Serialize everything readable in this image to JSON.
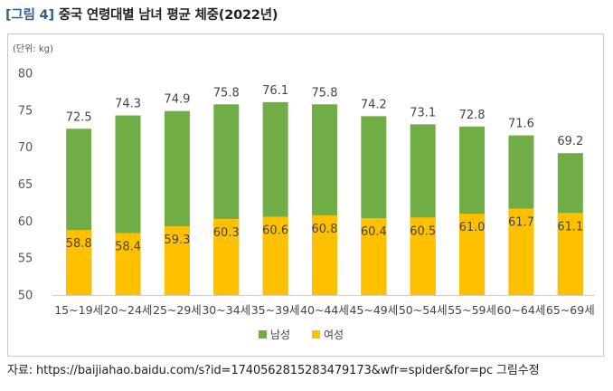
{
  "figure": {
    "label": "[그림 4]",
    "title": "중국 연령대별 남녀 평균 체중(2022년)"
  },
  "colors": {
    "male": "#70ad47",
    "female": "#ffc000",
    "title_label": "#2f5f8f"
  },
  "chart_data": {
    "type": "bar",
    "title": "",
    "unit_label": "(단위: kg)",
    "categories": [
      "15~19세",
      "20~24세",
      "25~29세",
      "30~34세",
      "35~39세",
      "40~44세",
      "45~49세",
      "50~54세",
      "55~59세",
      "60~64세",
      "65~69세"
    ],
    "series": [
      {
        "name": "남성",
        "values": [
          72.5,
          74.3,
          74.9,
          75.8,
          76.1,
          75.8,
          74.2,
          73.1,
          72.8,
          71.6,
          69.2
        ]
      },
      {
        "name": "여성",
        "values": [
          58.8,
          58.4,
          59.3,
          60.3,
          60.6,
          60.8,
          60.4,
          60.5,
          61.0,
          61.7,
          61.1
        ]
      }
    ],
    "value_labels": {
      "male": [
        "72.5",
        "74.3",
        "74.9",
        "75.8",
        "76.1",
        "75.8",
        "74.2",
        "73.1",
        "72.8",
        "71.6",
        "69.2"
      ],
      "female": [
        "58.8",
        "58.4",
        "59.3",
        "60.3",
        "60.6",
        "60.8",
        "60.4",
        "60.5",
        "61.0",
        "61.7",
        "61.1"
      ]
    },
    "ylim": [
      50,
      80
    ],
    "yticks": [
      50,
      55,
      60,
      65,
      70,
      75,
      80
    ],
    "grid": false,
    "legend_position": "bottom",
    "overlap": true
  },
  "source": "자료: https://baijiahao.baidu.com/s?id=1740562815283479173&wfr=spider&for=pc 그림수정"
}
